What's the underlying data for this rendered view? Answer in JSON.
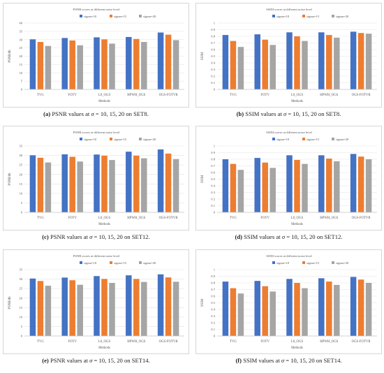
{
  "legend_labels": [
    "sigma=10",
    "sigma=15",
    "sigma=20"
  ],
  "colors": {
    "s10": "#4472c4",
    "s15": "#ed7d31",
    "s20": "#a5a5a5"
  },
  "captions": [
    {
      "letter": "(a)",
      "pre": "PSNR values at",
      "math": "σ",
      "post": "= 10, 15, 20 on SET8."
    },
    {
      "letter": "(b)",
      "pre": "SSIM values at",
      "math": "σ",
      "post": "= 10, 15, 20 on SET8."
    },
    {
      "letter": "(c)",
      "pre": "PSNR values at",
      "math": "σ",
      "post": "= 10, 15, 20 on SET12."
    },
    {
      "letter": "(d)",
      "pre": "SSIM values at",
      "math": "σ",
      "post": "= 10, 15, 20 on SET12."
    },
    {
      "letter": "(e)",
      "pre": "PSNR values at",
      "math": "σ",
      "post": "= 10, 15, 20 on SET14."
    },
    {
      "letter": "(f)",
      "pre": "SSIM values at",
      "math": "σ",
      "post": "= 10, 15, 20 on SET14."
    }
  ],
  "chart_data": [
    {
      "type": "bar",
      "title": "PSNR scores at different noise level",
      "xlabel": "Methods",
      "ylabel": "PSNR/db",
      "ylim": [
        0,
        40
      ],
      "yticks": [
        "0",
        "5",
        "10",
        "15",
        "20",
        "25",
        "30",
        "35",
        "40"
      ],
      "categories": [
        "TVG",
        "FOTV",
        "L0_OGS",
        "HPWH_OGS",
        "OGS-FOTVR"
      ],
      "series": [
        {
          "name": "sigma=10",
          "values": [
            30.2,
            31.0,
            31.4,
            31.6,
            34.3
          ]
        },
        {
          "name": "sigma=15",
          "values": [
            28.6,
            29.5,
            30.2,
            30.4,
            33.0
          ]
        },
        {
          "name": "sigma=20",
          "values": [
            26.2,
            26.6,
            27.6,
            28.6,
            29.7
          ]
        }
      ],
      "legend": "top",
      "grid": true
    },
    {
      "type": "bar",
      "title": "SSIM scores at different noise level",
      "xlabel": "Methods",
      "ylabel": "SSIM",
      "ylim": [
        0,
        1
      ],
      "yticks": [
        "0",
        "0.1",
        "0.2",
        "0.3",
        "0.4",
        "0.5",
        "0.6",
        "0.7",
        "0.8",
        "0.9",
        "1"
      ],
      "categories": [
        "TVG",
        "FOTV",
        "L0_OGS",
        "HPWH_OGS",
        "OGS-FOTVR"
      ],
      "series": [
        {
          "name": "sigma=10",
          "values": [
            0.82,
            0.83,
            0.86,
            0.86,
            0.87
          ]
        },
        {
          "name": "sigma=15",
          "values": [
            0.73,
            0.75,
            0.8,
            0.82,
            0.85
          ]
        },
        {
          "name": "sigma=20",
          "values": [
            0.64,
            0.67,
            0.73,
            0.78,
            0.84
          ]
        }
      ],
      "legend": "top",
      "grid": true
    },
    {
      "type": "bar",
      "title": "PSNR scores at different noise level",
      "xlabel": "Methods",
      "ylabel": "PSNR/db",
      "ylim": [
        0,
        35
      ],
      "yticks": [
        "0",
        "5",
        "10",
        "15",
        "20",
        "25",
        "30",
        "35"
      ],
      "categories": [
        "TVG",
        "FOTV",
        "L0_OGS",
        "HPWH_OGS",
        "OGS-FOTVR"
      ],
      "series": [
        {
          "name": "sigma=10",
          "values": [
            30.1,
            30.6,
            30.5,
            32.0,
            33.2
          ]
        },
        {
          "name": "sigma=15",
          "values": [
            28.8,
            29.3,
            29.9,
            29.9,
            31.0
          ]
        },
        {
          "name": "sigma=20",
          "values": [
            26.3,
            26.8,
            27.6,
            28.5,
            28.1
          ]
        }
      ],
      "legend": "top",
      "grid": true
    },
    {
      "type": "bar",
      "title": "SSIM scores at different noise level",
      "xlabel": "Methods",
      "ylabel": "SSIM",
      "ylim": [
        0,
        1
      ],
      "yticks": [
        "0",
        "0.1",
        "0.2",
        "0.3",
        "0.4",
        "0.5",
        "0.6",
        "0.7",
        "0.8",
        "0.9",
        "1"
      ],
      "categories": [
        "TVG",
        "FOTV",
        "L0_OGS",
        "HPWH_OGS",
        "OGS-FOTVR"
      ],
      "series": [
        {
          "name": "sigma=10",
          "values": [
            0.8,
            0.82,
            0.86,
            0.86,
            0.88
          ]
        },
        {
          "name": "sigma=15",
          "values": [
            0.73,
            0.75,
            0.79,
            0.81,
            0.84
          ]
        },
        {
          "name": "sigma=20",
          "values": [
            0.64,
            0.67,
            0.73,
            0.77,
            0.8
          ]
        }
      ],
      "legend": "top",
      "grid": true
    },
    {
      "type": "bar",
      "title": "PSNR scores at different noise level",
      "xlabel": "Methods",
      "ylabel": "PSNR/db",
      "ylim": [
        0,
        35
      ],
      "yticks": [
        "0",
        "5",
        "10",
        "15",
        "20",
        "25",
        "30",
        "35"
      ],
      "categories": [
        "TVG",
        "FOTV",
        "L0_OGS",
        "HPWH_OGS",
        "OGS-FOTVR"
      ],
      "series": [
        {
          "name": "sigma=10",
          "values": [
            30.3,
            30.8,
            31.6,
            32.0,
            32.5
          ]
        },
        {
          "name": "sigma=15",
          "values": [
            29.0,
            29.4,
            30.1,
            30.1,
            30.9
          ]
        },
        {
          "name": "sigma=20",
          "values": [
            26.5,
            27.0,
            28.0,
            28.5,
            28.6
          ]
        }
      ],
      "legend": "top",
      "grid": true
    },
    {
      "type": "bar",
      "title": "SSIM scores at different noise level",
      "xlabel": "Methods",
      "ylabel": "SSIM",
      "ylim": [
        0,
        1
      ],
      "yticks": [
        "0",
        "0.1",
        "0.2",
        "0.3",
        "0.4",
        "0.5",
        "0.6",
        "0.7",
        "0.8",
        "0.9",
        "1"
      ],
      "categories": [
        "TVG",
        "FOTV",
        "L0_OGS",
        "HPWH_OGS",
        "OGS-FOTVR"
      ],
      "series": [
        {
          "name": "sigma=10",
          "values": [
            0.82,
            0.83,
            0.86,
            0.87,
            0.89
          ]
        },
        {
          "name": "sigma=15",
          "values": [
            0.72,
            0.75,
            0.8,
            0.82,
            0.85
          ]
        },
        {
          "name": "sigma=20",
          "values": [
            0.64,
            0.67,
            0.72,
            0.77,
            0.8
          ]
        }
      ],
      "legend": "top",
      "grid": true
    }
  ]
}
